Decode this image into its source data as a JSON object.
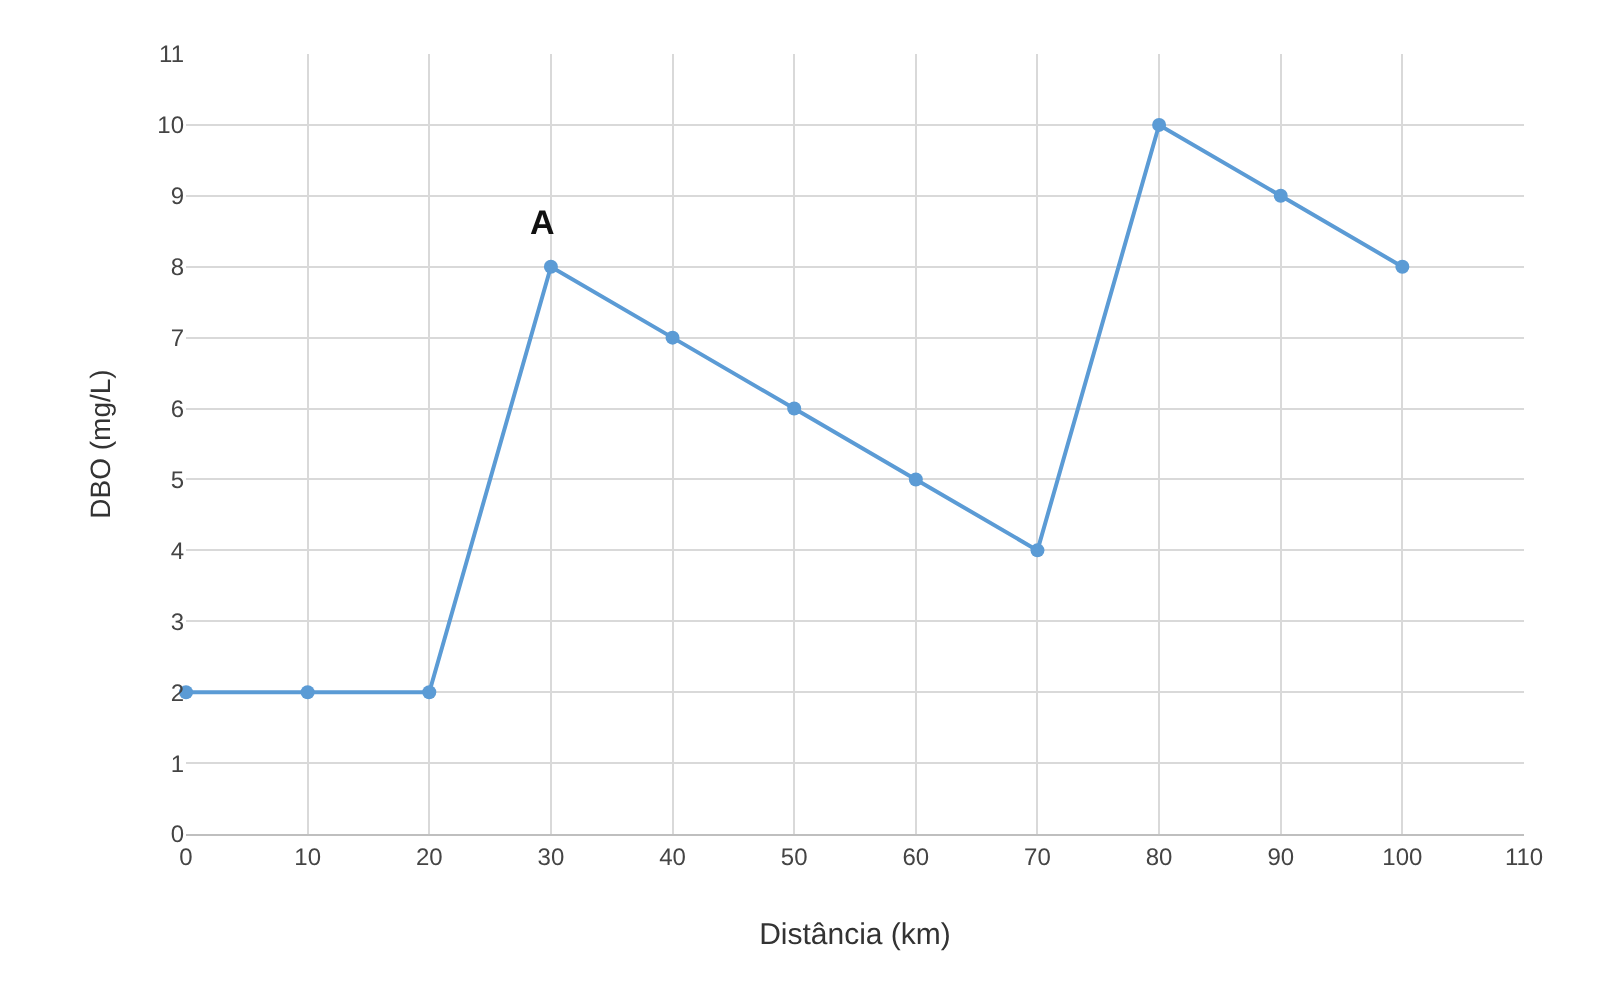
{
  "chart_data": {
    "type": "line",
    "xlabel": "Distância (km)",
    "ylabel": "DBO (mg/L)",
    "x": [
      0,
      10,
      20,
      30,
      40,
      50,
      60,
      70,
      80,
      90,
      100
    ],
    "series": [
      {
        "color": "#5b9bd5",
        "values": [
          2,
          2,
          2,
          8,
          7,
          6,
          5,
          4,
          10,
          9,
          8
        ]
      }
    ],
    "xlim": [
      0,
      110
    ],
    "xticks": [
      0,
      10,
      20,
      30,
      40,
      50,
      60,
      70,
      80,
      90,
      100,
      110
    ],
    "ylim": [
      0,
      11
    ],
    "yticks": [
      0,
      1,
      2,
      3,
      4,
      5,
      6,
      7,
      8,
      9,
      10,
      11
    ],
    "grid": true,
    "marker": "circle",
    "line_style": "solid",
    "annotations": [
      {
        "text": "A",
        "x": 30,
        "y": 8
      }
    ]
  }
}
